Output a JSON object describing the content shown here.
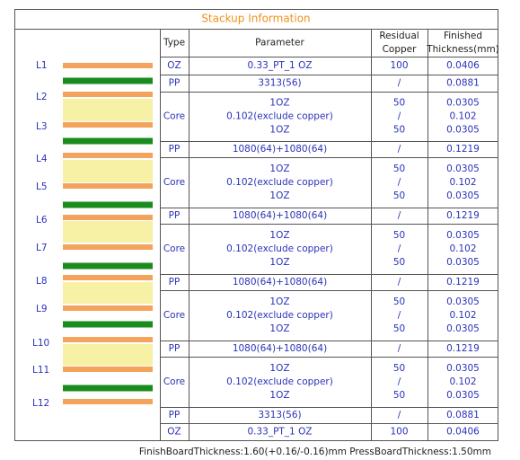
{
  "title": "Stackup Information",
  "headers": [
    [
      "Type"
    ],
    [
      "Parameter"
    ],
    [
      "Residual",
      "Copper"
    ],
    [
      "Finished",
      "Thickness(mm)"
    ]
  ],
  "layers": [
    "L1",
    "L2",
    "L3",
    "L4",
    "L5",
    "L6",
    "L7",
    "L8",
    "L9",
    "L10",
    "L11",
    "L12"
  ],
  "rows": [
    {
      "type": "OZ",
      "parameter": [
        "0.33_PT_1 OZ"
      ],
      "copper": [
        "100"
      ],
      "thickness": [
        "0.0406"
      ]
    },
    {
      "type": "PP",
      "parameter": [
        "3313(56)"
      ],
      "copper": [
        "/"
      ],
      "thickness": [
        "0.0881"
      ]
    },
    {
      "type": "Core",
      "parameter": [
        "1OZ",
        "0.102(exclude copper)",
        "1OZ"
      ],
      "copper": [
        "50",
        "/",
        "50"
      ],
      "thickness": [
        "0.0305",
        "0.102",
        "0.0305"
      ]
    },
    {
      "type": "PP",
      "parameter": [
        "1080(64)+1080(64)"
      ],
      "copper": [
        "/"
      ],
      "thickness": [
        "0.1219"
      ]
    },
    {
      "type": "Core",
      "parameter": [
        "1OZ",
        "0.102(exclude copper)",
        "1OZ"
      ],
      "copper": [
        "50",
        "/",
        "50"
      ],
      "thickness": [
        "0.0305",
        "0.102",
        "0.0305"
      ]
    },
    {
      "type": "PP",
      "parameter": [
        "1080(64)+1080(64)"
      ],
      "copper": [
        "/"
      ],
      "thickness": [
        "0.1219"
      ]
    },
    {
      "type": "Core",
      "parameter": [
        "1OZ",
        "0.102(exclude copper)",
        "1OZ"
      ],
      "copper": [
        "50",
        "/",
        "50"
      ],
      "thickness": [
        "0.0305",
        "0.102",
        "0.0305"
      ]
    },
    {
      "type": "PP",
      "parameter": [
        "1080(64)+1080(64)"
      ],
      "copper": [
        "/"
      ],
      "thickness": [
        "0.1219"
      ]
    },
    {
      "type": "Core",
      "parameter": [
        "1OZ",
        "0.102(exclude copper)",
        "1OZ"
      ],
      "copper": [
        "50",
        "/",
        "50"
      ],
      "thickness": [
        "0.0305",
        "0.102",
        "0.0305"
      ]
    },
    {
      "type": "PP",
      "parameter": [
        "1080(64)+1080(64)"
      ],
      "copper": [
        "/"
      ],
      "thickness": [
        "0.1219"
      ]
    },
    {
      "type": "Core",
      "parameter": [
        "1OZ",
        "0.102(exclude copper)",
        "1OZ"
      ],
      "copper": [
        "50",
        "/",
        "50"
      ],
      "thickness": [
        "0.0305",
        "0.102",
        "0.0305"
      ]
    },
    {
      "type": "PP",
      "parameter": [
        "3313(56)"
      ],
      "copper": [
        "/"
      ],
      "thickness": [
        "0.0881"
      ]
    },
    {
      "type": "OZ",
      "parameter": [
        "0.33_PT_1 OZ"
      ],
      "copper": [
        "100"
      ],
      "thickness": [
        "0.0406"
      ]
    }
  ],
  "footer": [
    "FinishBoardThickness:1.60(+0.16/-0.16)mm",
    "PressBoardThickness:1.50mm"
  ]
}
